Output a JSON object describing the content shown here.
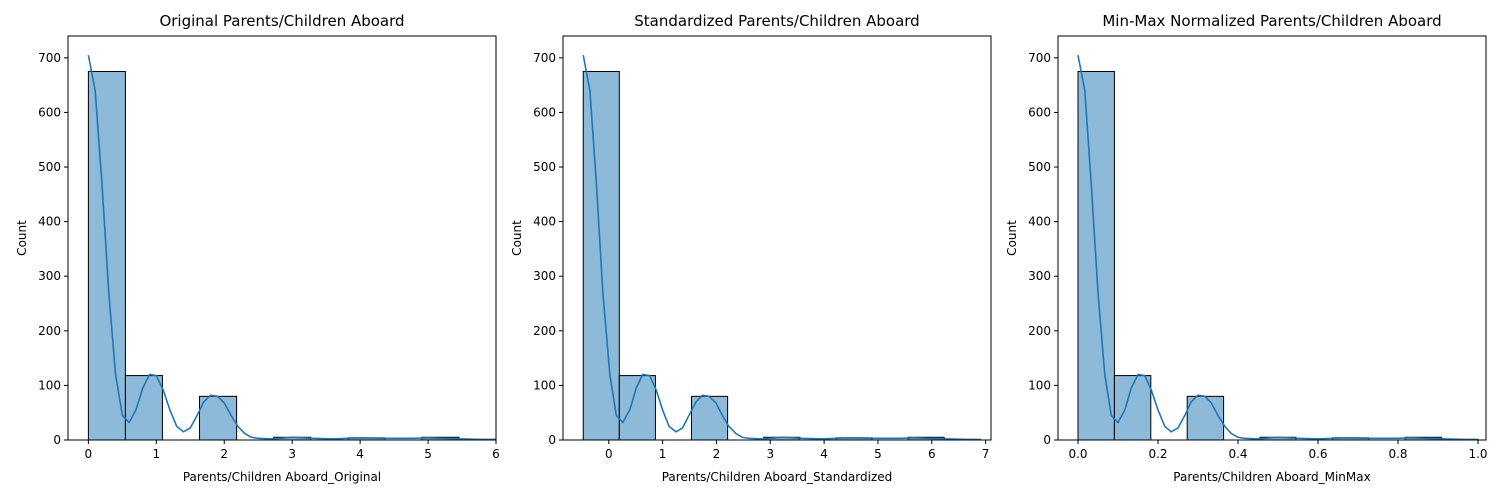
{
  "chart_data": [
    {
      "type": "bar",
      "title": "Original Parents/Children Aboard",
      "xlabel": "Parents/Children Aboard_Original",
      "ylabel": "Count",
      "xlim": [
        -0.3,
        6.0
      ],
      "ylim": [
        0,
        740
      ],
      "xticks": [
        0,
        1,
        2,
        3,
        4,
        5,
        6
      ],
      "xtick_labels": [
        "0",
        "1",
        "2",
        "3",
        "4",
        "5",
        "6"
      ],
      "yticks": [
        0,
        100,
        200,
        300,
        400,
        500,
        600,
        700
      ],
      "ytick_labels": [
        "0",
        "100",
        "200",
        "300",
        "400",
        "500",
        "600",
        "700"
      ],
      "bins": [
        {
          "x0": 0.0,
          "x1": 0.545,
          "count": 675
        },
        {
          "x0": 0.545,
          "x1": 1.09,
          "count": 118
        },
        {
          "x0": 1.09,
          "x1": 1.636,
          "count": 0
        },
        {
          "x0": 1.636,
          "x1": 2.182,
          "count": 80
        },
        {
          "x0": 2.182,
          "x1": 2.727,
          "count": 0
        },
        {
          "x0": 2.727,
          "x1": 3.273,
          "count": 5
        },
        {
          "x0": 3.273,
          "x1": 3.818,
          "count": 0
        },
        {
          "x0": 3.818,
          "x1": 4.364,
          "count": 4
        },
        {
          "x0": 4.364,
          "x1": 4.909,
          "count": 0
        },
        {
          "x0": 4.909,
          "x1": 5.455,
          "count": 5
        },
        {
          "x0": 5.455,
          "x1": 6.0,
          "count": 1
        }
      ],
      "kde": {
        "x": [
          0.0,
          0.1,
          0.2,
          0.3,
          0.4,
          0.5,
          0.6,
          0.7,
          0.8,
          0.9,
          1.0,
          1.1,
          1.2,
          1.3,
          1.4,
          1.5,
          1.6,
          1.7,
          1.8,
          1.9,
          2.0,
          2.1,
          2.2,
          2.3,
          2.4,
          2.5,
          2.7,
          3.0,
          3.3,
          3.6,
          4.0,
          4.4,
          4.8,
          5.0,
          5.2,
          5.5,
          5.8,
          6.0
        ],
        "y": [
          705,
          640,
          470,
          270,
          120,
          45,
          32,
          55,
          95,
          120,
          118,
          92,
          55,
          25,
          15,
          22,
          45,
          70,
          82,
          80,
          68,
          45,
          25,
          12,
          5,
          3,
          2,
          5,
          3,
          2,
          4,
          3,
          3,
          4,
          3,
          2,
          1,
          1
        ]
      }
    },
    {
      "type": "bar",
      "title": "Standardized Parents/Children Aboard",
      "xlabel": "Parents/Children Aboard_Standardized",
      "ylabel": "Count",
      "xlim": [
        -0.85,
        7.1
      ],
      "ylim": [
        0,
        740
      ],
      "xticks": [
        0,
        1,
        2,
        3,
        4,
        5,
        6,
        7
      ],
      "xtick_labels": [
        "0",
        "1",
        "2",
        "3",
        "4",
        "5",
        "6",
        "7"
      ],
      "yticks": [
        0,
        100,
        200,
        300,
        400,
        500,
        600,
        700
      ],
      "ytick_labels": [
        "0",
        "100",
        "200",
        "300",
        "400",
        "500",
        "600",
        "700"
      ],
      "bins": [
        {
          "x0": -0.474,
          "x1": 0.196,
          "count": 675
        },
        {
          "x0": 0.196,
          "x1": 0.867,
          "count": 118
        },
        {
          "x0": 0.867,
          "x1": 1.537,
          "count": 0
        },
        {
          "x0": 1.537,
          "x1": 2.208,
          "count": 80
        },
        {
          "x0": 2.208,
          "x1": 2.878,
          "count": 0
        },
        {
          "x0": 2.878,
          "x1": 3.549,
          "count": 5
        },
        {
          "x0": 3.549,
          "x1": 4.219,
          "count": 0
        },
        {
          "x0": 4.219,
          "x1": 4.89,
          "count": 4
        },
        {
          "x0": 4.89,
          "x1": 5.56,
          "count": 0
        },
        {
          "x0": 5.56,
          "x1": 6.231,
          "count": 5
        },
        {
          "x0": 6.231,
          "x1": 6.901,
          "count": 1
        }
      ],
      "kde": {
        "x": [
          -0.474,
          -0.35,
          -0.23,
          -0.11,
          0.02,
          0.14,
          0.26,
          0.39,
          0.51,
          0.63,
          0.76,
          0.88,
          1.0,
          1.12,
          1.25,
          1.37,
          1.49,
          1.62,
          1.74,
          1.86,
          1.99,
          2.11,
          2.23,
          2.36,
          2.48,
          2.6,
          2.85,
          3.22,
          3.59,
          3.96,
          4.45,
          4.94,
          5.43,
          5.67,
          5.92,
          6.29,
          6.66,
          6.9
        ],
        "y": [
          705,
          640,
          470,
          270,
          120,
          45,
          32,
          55,
          95,
          120,
          118,
          92,
          55,
          25,
          15,
          22,
          45,
          70,
          82,
          80,
          68,
          45,
          25,
          12,
          5,
          3,
          2,
          5,
          3,
          2,
          4,
          3,
          3,
          4,
          3,
          2,
          1,
          1
        ]
      }
    },
    {
      "type": "bar",
      "title": "Min-Max Normalized Parents/Children Aboard",
      "xlabel": "Parents/Children Aboard_MinMax",
      "ylabel": "Count",
      "xlim": [
        -0.05,
        1.02
      ],
      "ylim": [
        0,
        740
      ],
      "xticks": [
        0.0,
        0.2,
        0.4,
        0.6,
        0.8,
        1.0
      ],
      "xtick_labels": [
        "0.0",
        "0.2",
        "0.4",
        "0.6",
        "0.8",
        "1.0"
      ],
      "yticks": [
        0,
        100,
        200,
        300,
        400,
        500,
        600,
        700
      ],
      "ytick_labels": [
        "0",
        "100",
        "200",
        "300",
        "400",
        "500",
        "600",
        "700"
      ],
      "bins": [
        {
          "x0": 0.0,
          "x1": 0.091,
          "count": 675
        },
        {
          "x0": 0.091,
          "x1": 0.182,
          "count": 118
        },
        {
          "x0": 0.182,
          "x1": 0.273,
          "count": 0
        },
        {
          "x0": 0.273,
          "x1": 0.364,
          "count": 80
        },
        {
          "x0": 0.364,
          "x1": 0.455,
          "count": 0
        },
        {
          "x0": 0.455,
          "x1": 0.545,
          "count": 5
        },
        {
          "x0": 0.545,
          "x1": 0.636,
          "count": 0
        },
        {
          "x0": 0.636,
          "x1": 0.727,
          "count": 4
        },
        {
          "x0": 0.727,
          "x1": 0.818,
          "count": 0
        },
        {
          "x0": 0.818,
          "x1": 0.909,
          "count": 5
        },
        {
          "x0": 0.909,
          "x1": 1.0,
          "count": 1
        }
      ],
      "kde": {
        "x": [
          0.0,
          0.017,
          0.033,
          0.05,
          0.067,
          0.083,
          0.1,
          0.117,
          0.133,
          0.15,
          0.167,
          0.183,
          0.2,
          0.217,
          0.233,
          0.25,
          0.267,
          0.283,
          0.3,
          0.317,
          0.333,
          0.35,
          0.367,
          0.383,
          0.4,
          0.417,
          0.45,
          0.5,
          0.55,
          0.6,
          0.667,
          0.733,
          0.8,
          0.833,
          0.867,
          0.917,
          0.967,
          1.0
        ],
        "y": [
          705,
          640,
          470,
          270,
          120,
          45,
          32,
          55,
          95,
          120,
          118,
          92,
          55,
          25,
          15,
          22,
          45,
          70,
          82,
          80,
          68,
          45,
          25,
          12,
          5,
          3,
          2,
          5,
          3,
          2,
          4,
          3,
          3,
          4,
          3,
          2,
          1,
          1
        ]
      }
    }
  ],
  "colors": {
    "bar_fill": "#8ebad9",
    "bar_stroke": "#000000",
    "kde_line": "#1f77b4",
    "axis": "#000000"
  }
}
